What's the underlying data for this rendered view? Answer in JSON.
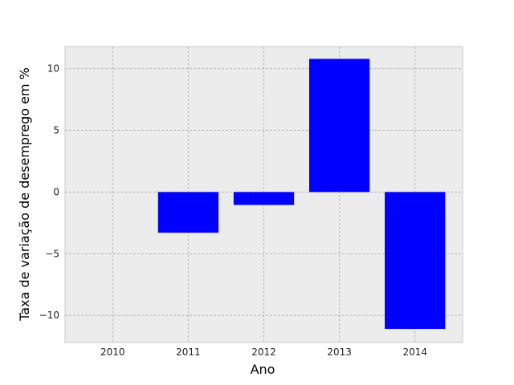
{
  "chart_data": {
    "type": "bar",
    "title": "",
    "xlabel": "Ano",
    "ylabel": "Taxa de variação de desemprego em %",
    "categories": [
      "2010",
      "2011",
      "2012",
      "2013",
      "2014"
    ],
    "values": [
      0,
      -3.3,
      -1.05,
      10.8,
      -11.1
    ],
    "ylim": [
      -12.2,
      11.8
    ],
    "yticks": [
      -10,
      -5,
      0,
      5,
      10
    ],
    "ytick_labels": [
      "−10",
      "−5",
      "0",
      "5",
      "10"
    ],
    "grid": true,
    "bar_color": "#0000ff",
    "background_color": "#ececec",
    "grid_color": "#b0b0b0"
  }
}
